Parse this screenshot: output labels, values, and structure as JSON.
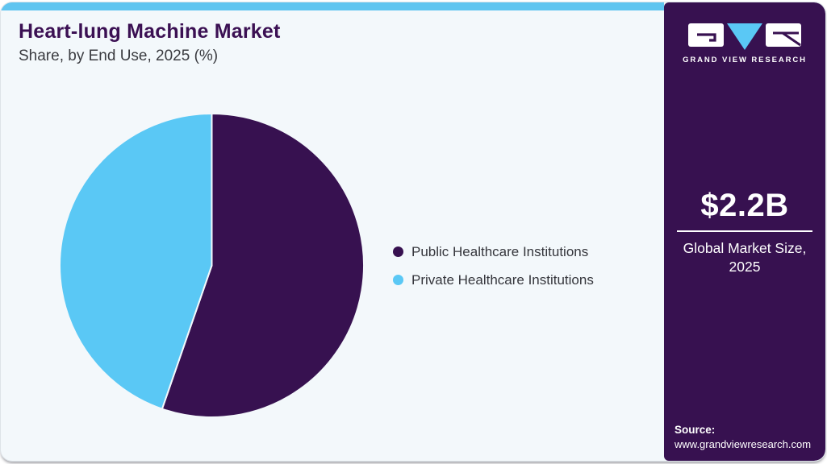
{
  "header": {
    "title": "Heart-lung Machine Market",
    "subtitle": "Share, by End Use, 2025 (%)"
  },
  "chart_data": {
    "type": "pie",
    "title": "Heart-lung Machine Market Share, by End Use, 2025 (%)",
    "start_angle_deg": 0,
    "direction": "clockwise",
    "labels_shown": false,
    "legend_position": "right",
    "series": [
      {
        "name": "Public Healthcare Institutions",
        "value": 55.3,
        "color": "#371150"
      },
      {
        "name": "Private Healthcare Institutions",
        "value": 44.7,
        "color": "#5ac8f5"
      }
    ]
  },
  "sidebar": {
    "logo": {
      "caption": "GRAND VIEW RESEARCH",
      "icon": "gvr-logo"
    },
    "market_size": {
      "value": "$2.2B",
      "caption": "Global Market Size, 2025"
    },
    "source": {
      "label": "Source:",
      "url": "www.grandviewresearch.com"
    }
  },
  "colors": {
    "accent_bar": "#60c5f0",
    "sidebar_bg": "#371150",
    "panel_bg": "#f3f8fb",
    "title_text": "#3b1053",
    "body_text": "#35363c",
    "pie_slice_gap": "#f3f8fb"
  }
}
